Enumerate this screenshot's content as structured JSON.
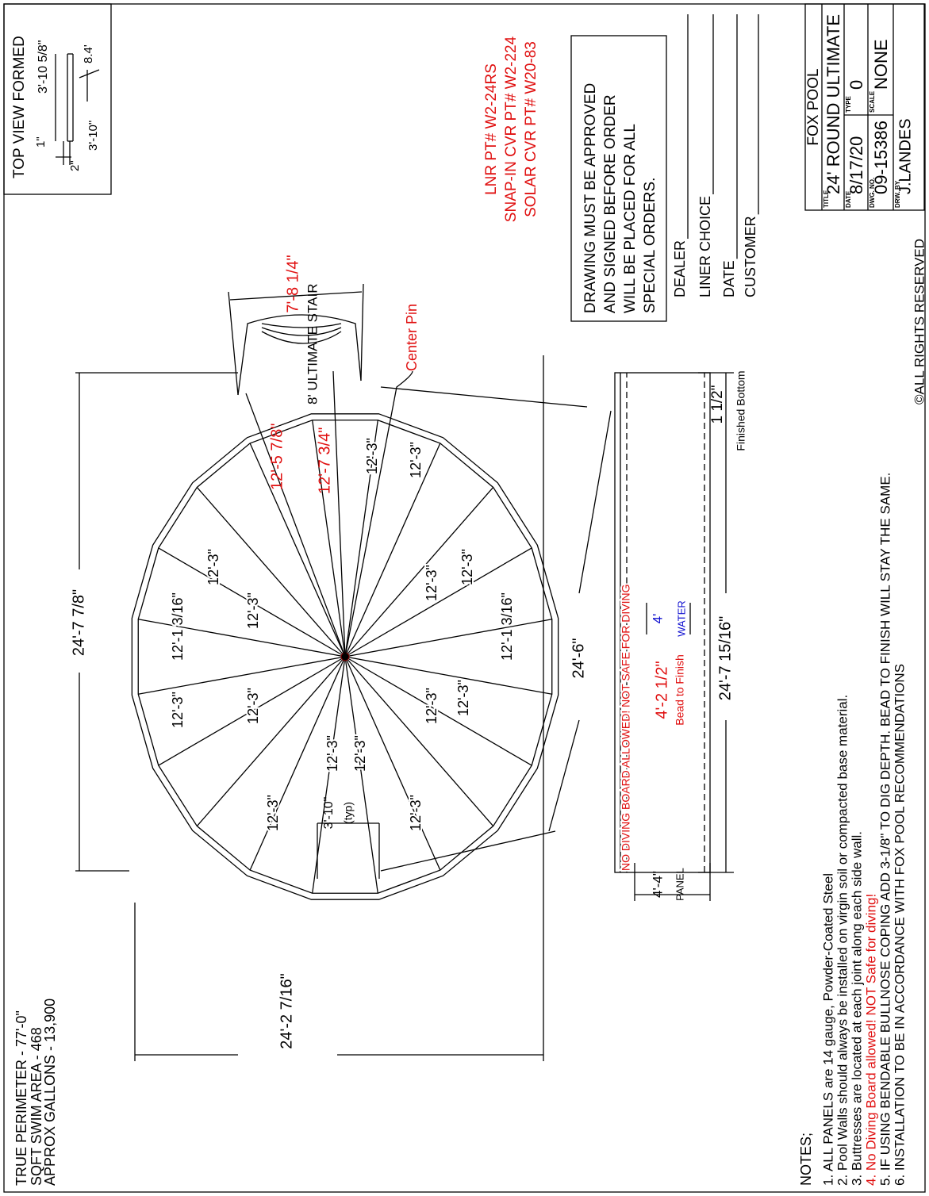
{
  "stats": [
    "TRUE PERIMETER - 77'-0\"",
    "SQFT SWIM AREA - 468",
    "APPROX GALLONS - 13,900"
  ],
  "top_view": {
    "title": "TOP VIEW FORMED",
    "dims": [
      "3'-10 5/8\"",
      "1\"",
      "2\"",
      "3'-10\"",
      "8.4'"
    ]
  },
  "parts": [
    "LNR PT# W2-24RS",
    "SNAP-IN CVR PT# W2-224",
    "SOLAR CVR PT# W20-83"
  ],
  "approval": [
    "DRAWING MUST BE APPROVED",
    "AND SIGNED BEFORE ORDER",
    "WILL BE PLACED FOR ALL",
    "SPECIAL ORDERS."
  ],
  "signoff": [
    "DEALER",
    "LINER CHOICE",
    "DATE",
    "CUSTOMER"
  ],
  "title_block": {
    "company": "FOX POOL",
    "title_label": "TITLE",
    "title": "24' ROUND ULTIMATE",
    "date_label": "DATE",
    "date": "8/17/20",
    "type_label": "TYPE",
    "type": "0",
    "dwg_label": "DWG. NO.",
    "dwg": "09-15386",
    "scale_label": "SCALE",
    "scale": "NONE",
    "drawn_label": "DRW. BY.",
    "drawn": "J.LANDES",
    "copyright": "©ALL RIGHTS RESERVED"
  },
  "plan": {
    "stair": "8' ULTIMATE STAIR",
    "stair_width": "7'-8 1/4\"",
    "center_pin": "Center Pin",
    "overall_length": "24'-7 7/8\"",
    "overall_width": "24'-2 7/16\"",
    "diagonal": "24'-6\"",
    "radii": [
      "12'-3\"",
      "12'-3\"",
      "12'-3\"",
      "12'-3\"",
      "12'-3\"",
      "12'-3\"",
      "12'-3\"",
      "12'-3\"",
      "12'-3\"",
      "12'-3\"",
      "12'-3\"",
      "12'-3\"",
      "12'-3\"",
      "12'-3\""
    ],
    "width_radii": [
      "12'-1 3/16\"",
      "12'-1 3/16\""
    ],
    "stair_radii": [
      "12'-5 7/8\"",
      "12'-7 3/4\""
    ],
    "panel_width": "3'-10\"",
    "panel_note": "(typ)"
  },
  "section": {
    "warning": "NO DIVING BOARD ALLOWED! NOT SAFE FOR DIVING",
    "water_depth": "4'",
    "water": "WATER",
    "bead_depth": "4'-2 1/2\"",
    "bead": "Bead to Finish",
    "length": "24'-7 15/16\"",
    "bottom": "1 1/2\"",
    "bottom_label": "Finished Bottom",
    "panel_height": "4'-4\"",
    "panel": "PANEL"
  },
  "notes": {
    "heading": "NOTES;",
    "items": [
      "1. ALL PANELS are 14 gauge, Powder-Coated Steel",
      "2. Pool Walls should always be installed on virgin soil or compacted base material.",
      "3. Buttresses are located at each joint along each side wall.",
      "4. No Diving Board allowed!  NOT Safe for diving!",
      "5. IF USING BENDABLE BULLNOSE COPING ADD 3-1/8\" TO DIG DEPTH. BEAD TO FINISH WILL STAY THE SAME.",
      "6. INSTALLATION TO BE IN ACCORDANCE WITH FOX POOL RECOMMENDATIONS"
    ]
  }
}
